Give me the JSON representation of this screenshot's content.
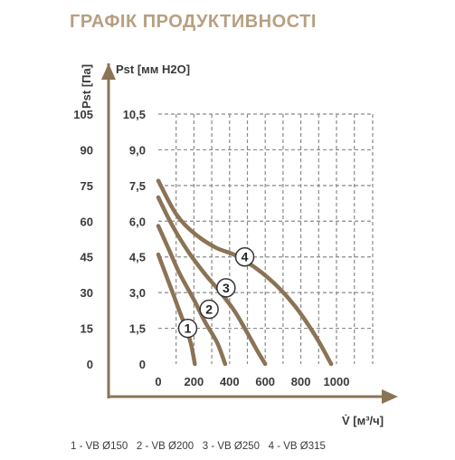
{
  "chart_data": {
    "type": "line",
    "title": "ГРАФІК ПРОДУКТИВНОСТІ",
    "colors": {
      "title": "#b89f82",
      "curve": "#8b7355",
      "text": "#3a3a3a",
      "grid": "#8a8a8a",
      "axis": "#8b7355"
    },
    "axes": {
      "x": {
        "label": "V̇ [м³/ч]",
        "range": [
          0,
          1000
        ],
        "ticks": [
          0,
          200,
          400,
          600,
          800,
          1000
        ]
      },
      "y_left": {
        "label": "Pst [Па]",
        "range": [
          0,
          105
        ],
        "ticks": [
          0,
          15,
          30,
          45,
          60,
          75,
          90,
          105
        ]
      },
      "y_right": {
        "label": "Pst [мм H2O]",
        "ticks": [
          "0",
          "1,5",
          "3,0",
          "4,5",
          "6,0",
          "7,5",
          "9,0",
          "10,5"
        ]
      }
    },
    "grid": true,
    "series": [
      {
        "name": "1",
        "label_at": [
          165,
          15
        ],
        "points": [
          [
            0,
            46
          ],
          [
            40,
            38
          ],
          [
            80,
            30
          ],
          [
            120,
            22
          ],
          [
            160,
            14
          ],
          [
            185,
            8
          ],
          [
            205,
            0
          ]
        ]
      },
      {
        "name": "2",
        "label_at": [
          285,
          23
        ],
        "points": [
          [
            0,
            58
          ],
          [
            60,
            48
          ],
          [
            120,
            38
          ],
          [
            200,
            27
          ],
          [
            260,
            18
          ],
          [
            330,
            9
          ],
          [
            375,
            0
          ]
        ]
      },
      {
        "name": "3",
        "label_at": [
          380,
          32
        ],
        "points": [
          [
            0,
            70
          ],
          [
            80,
            58
          ],
          [
            170,
            47
          ],
          [
            260,
            38
          ],
          [
            350,
            30
          ],
          [
            430,
            22
          ],
          [
            500,
            13
          ],
          [
            560,
            5
          ],
          [
            600,
            0
          ]
        ]
      },
      {
        "name": "4",
        "label_at": [
          485,
          45
        ],
        "points": [
          [
            0,
            77
          ],
          [
            100,
            63
          ],
          [
            200,
            55
          ],
          [
            320,
            49
          ],
          [
            450,
            45
          ],
          [
            620,
            36
          ],
          [
            760,
            25
          ],
          [
            880,
            12
          ],
          [
            970,
            0
          ]
        ]
      }
    ],
    "legend": {
      "position": "bottom",
      "text": "1 - VB Ø150   2 - VB Ø200   3 - VB Ø250   4 - VB Ø315"
    }
  }
}
